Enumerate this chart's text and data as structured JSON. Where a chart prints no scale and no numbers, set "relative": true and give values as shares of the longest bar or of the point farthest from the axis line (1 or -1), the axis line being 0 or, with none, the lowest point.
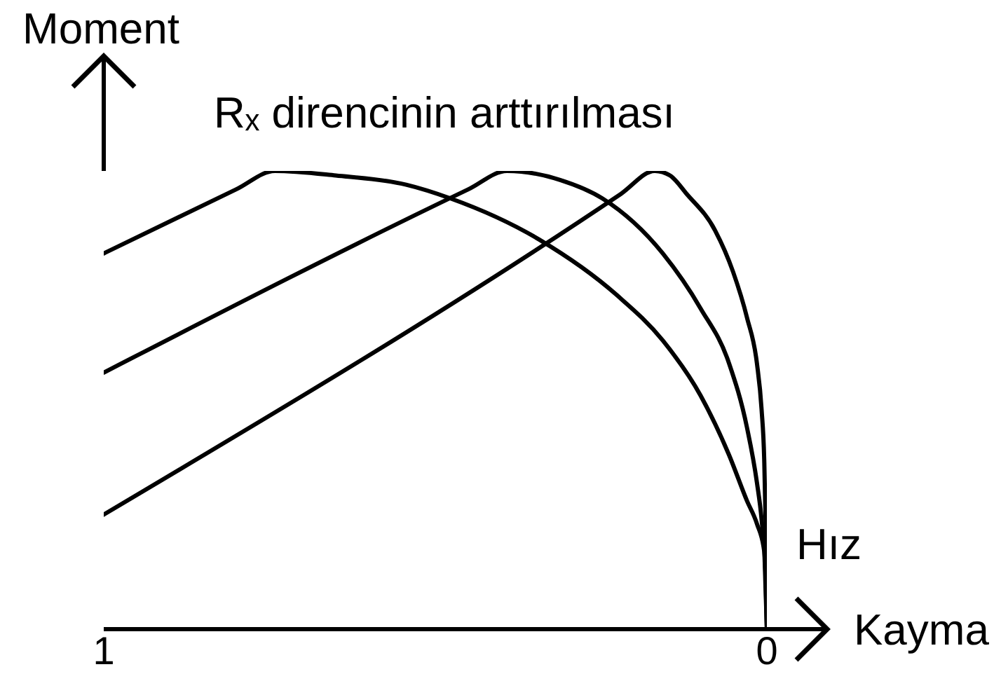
{
  "chart_data": {
    "type": "line",
    "title": "Rₓ direncinin arttırılması",
    "xlabel": "Kayma",
    "ylabel": "Moment",
    "annotations": [
      "Hız"
    ],
    "relative": true,
    "xlim": [
      1,
      0
    ],
    "xticks": [
      1,
      0
    ],
    "marker": "none",
    "line_style": "solid",
    "series": [
      {
        "color": "#000000",
        "x": [
          1,
          0.8,
          0.742,
          0.65,
          0.544,
          0.477,
          0.343,
          0.227,
          0.157,
          0.1,
          0.057,
          0.03,
          0.015,
          0.004,
          0.002,
          0
        ],
        "values": [
          0.82,
          0.96,
          1,
          0.99,
          0.97,
          0.94,
          0.85,
          0.73,
          0.63,
          0.51,
          0.38,
          0.28,
          0.23,
          0.17,
          0.09,
          0
        ]
      },
      {
        "color": "#000000",
        "x": [
          1,
          0.45,
          0.392,
          0.311,
          0.248,
          0.157,
          0.1,
          0.057,
          0.03,
          0.015,
          0.008,
          0.002,
          0
        ],
        "values": [
          0.56,
          0.96,
          1,
          0.98,
          0.94,
          0.82,
          0.7,
          0.58,
          0.44,
          0.32,
          0.24,
          0.12,
          0
        ]
      },
      {
        "color": "#000000",
        "x": [
          1,
          0.22,
          0.169,
          0.146,
          0.121,
          0.078,
          0.051,
          0.03,
          0.015,
          0.008,
          0.004,
          0.002,
          0
        ],
        "values": [
          0.25,
          0.95,
          1,
          0.99,
          0.95,
          0.87,
          0.78,
          0.68,
          0.58,
          0.48,
          0.37,
          0.24,
          0
        ]
      }
    ]
  }
}
